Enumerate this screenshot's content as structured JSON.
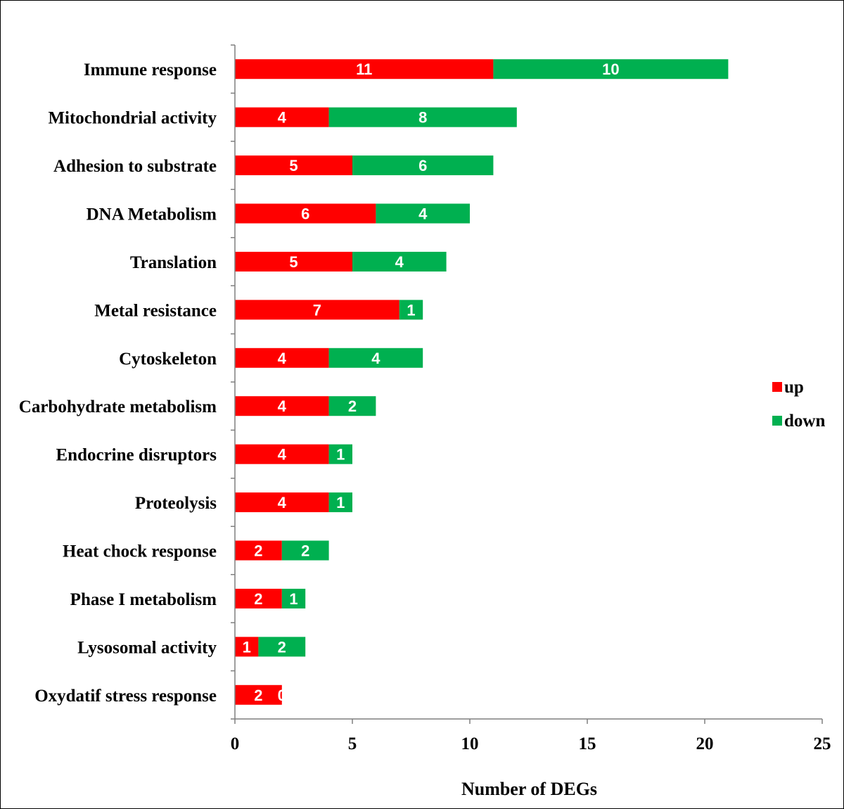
{
  "chart_data": {
    "type": "bar",
    "orientation": "horizontal",
    "stacked": true,
    "categories": [
      "Immune response",
      "Mitochondrial activity",
      "Adhesion to substrate",
      "DNA Metabolism",
      "Translation",
      "Metal resistance",
      "Cytoskeleton",
      "Carbohydrate metabolism",
      "Endocrine disruptors",
      "Proteolysis",
      "Heat chock response",
      "Phase I metabolism",
      "Lysosomal activity",
      "Oxydatif stress response"
    ],
    "series": [
      {
        "name": "up",
        "color": "#ff0000",
        "values": [
          11,
          4,
          5,
          6,
          5,
          7,
          4,
          4,
          4,
          4,
          2,
          2,
          1,
          2
        ]
      },
      {
        "name": "down",
        "color": "#00b050",
        "values": [
          10,
          8,
          6,
          4,
          4,
          1,
          4,
          2,
          1,
          1,
          2,
          1,
          2,
          0
        ]
      }
    ],
    "xlabel": "Number of DEGs",
    "ylabel": "",
    "xlim": [
      0,
      25
    ],
    "xticks": [
      0,
      5,
      10,
      15,
      20,
      25
    ],
    "grid": false,
    "legend": "right"
  }
}
